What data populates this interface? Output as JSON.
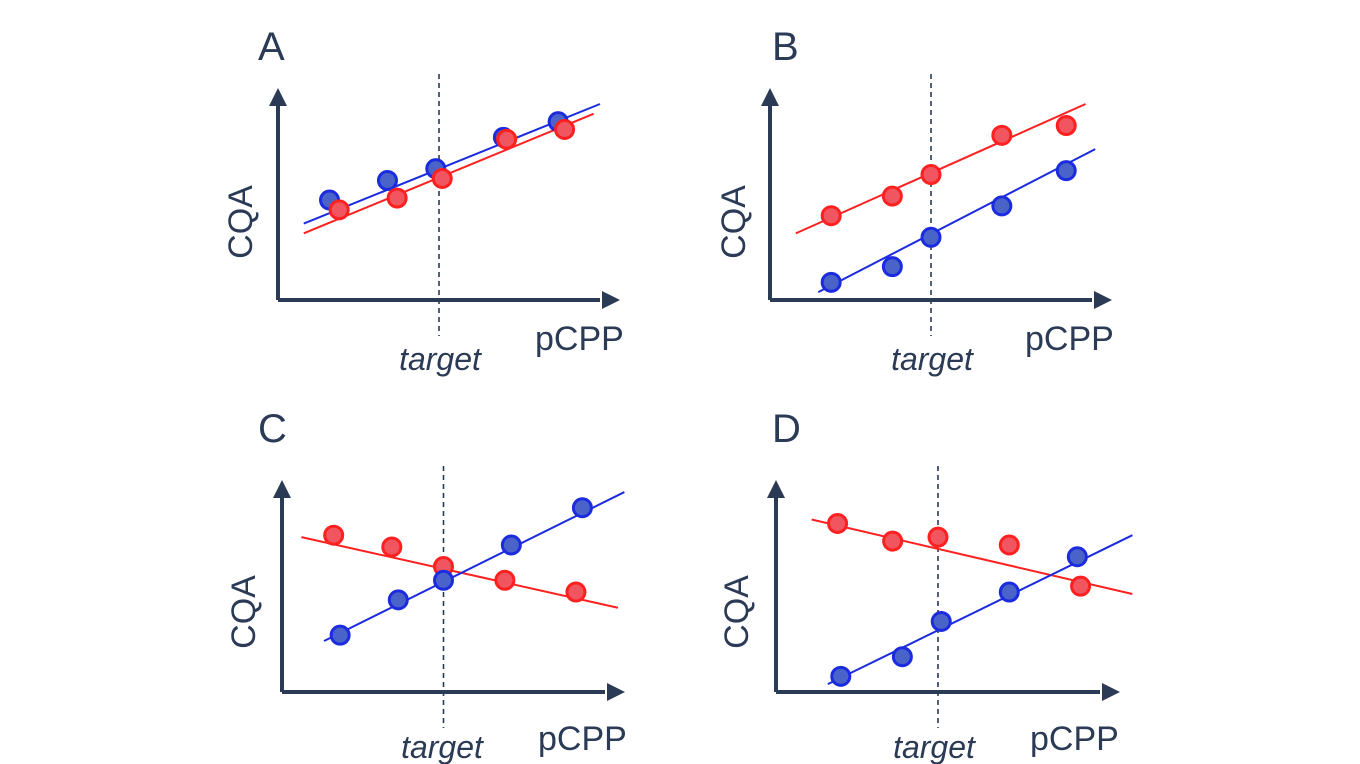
{
  "chart_data": [
    {
      "type": "scatter",
      "panel": "A",
      "title": "A",
      "xlabel": "pCPP",
      "ylabel": "CQA",
      "target_label": "target",
      "xlim": [
        0,
        10
      ],
      "ylim": [
        0,
        10
      ],
      "target_x": 5,
      "series": [
        {
          "name": "blue",
          "color": "#1a2be0",
          "fill": "#4a63c8",
          "points": [
            [
              1.6,
              5.1
            ],
            [
              3.4,
              6.1
            ],
            [
              4.9,
              6.7
            ],
            [
              7.0,
              8.3
            ],
            [
              8.7,
              9.1
            ]
          ],
          "fit": [
            [
              0.8,
              3.9
            ],
            [
              10,
              10
            ]
          ]
        },
        {
          "name": "red",
          "color": "#ff2020",
          "fill": "#f05560",
          "points": [
            [
              1.9,
              4.6
            ],
            [
              3.7,
              5.2
            ],
            [
              5.1,
              6.2
            ],
            [
              7.1,
              8.2
            ],
            [
              8.9,
              8.7
            ]
          ],
          "fit": [
            [
              0.8,
              3.4
            ],
            [
              9.8,
              9.5
            ]
          ]
        }
      ]
    },
    {
      "type": "scatter",
      "panel": "B",
      "title": "B",
      "xlabel": "pCPP",
      "ylabel": "CQA",
      "target_label": "target",
      "xlim": [
        0,
        10
      ],
      "ylim": [
        0,
        10
      ],
      "target_x": 5,
      "series": [
        {
          "name": "red",
          "color": "#ff2020",
          "fill": "#f05560",
          "points": [
            [
              1.9,
              4.3
            ],
            [
              3.8,
              5.3
            ],
            [
              5.0,
              6.4
            ],
            [
              7.2,
              8.4
            ],
            [
              9.2,
              8.9
            ]
          ],
          "fit": [
            [
              0.8,
              3.4
            ],
            [
              9.8,
              10
            ]
          ]
        },
        {
          "name": "blue",
          "color": "#1a2be0",
          "fill": "#4a63c8",
          "points": [
            [
              1.9,
              0.9
            ],
            [
              3.8,
              1.7
            ],
            [
              5.0,
              3.2
            ],
            [
              7.2,
              4.8
            ],
            [
              9.2,
              6.6
            ]
          ],
          "fit": [
            [
              1.5,
              0.4
            ],
            [
              10.1,
              7.7
            ]
          ]
        }
      ]
    },
    {
      "type": "scatter",
      "panel": "C",
      "title": "C",
      "xlabel": "pCPP",
      "ylabel": "CQA",
      "target_label": "target",
      "xlim": [
        0,
        10
      ],
      "ylim": [
        0,
        10
      ],
      "target_x": 5,
      "series": [
        {
          "name": "red",
          "color": "#ff2020",
          "fill": "#f05560",
          "points": [
            [
              1.6,
              8.0
            ],
            [
              3.4,
              7.4
            ],
            [
              5.0,
              6.4
            ],
            [
              6.9,
              5.7
            ],
            [
              9.1,
              5.1
            ]
          ],
          "fit": [
            [
              0.6,
              7.9
            ],
            [
              10.4,
              4.3
            ]
          ]
        },
        {
          "name": "blue",
          "color": "#1a2be0",
          "fill": "#4a63c8",
          "points": [
            [
              1.8,
              2.9
            ],
            [
              3.6,
              4.7
            ],
            [
              5.0,
              5.7
            ],
            [
              7.1,
              7.5
            ],
            [
              9.3,
              9.4
            ]
          ],
          "fit": [
            [
              1.3,
              2.6
            ],
            [
              10.6,
              10.2
            ]
          ]
        }
      ]
    },
    {
      "type": "scatter",
      "panel": "D",
      "title": "D",
      "xlabel": "pCPP",
      "ylabel": "CQA",
      "target_label": "target",
      "xlim": [
        0,
        10
      ],
      "ylim": [
        0,
        10
      ],
      "target_x": 5,
      "series": [
        {
          "name": "red",
          "color": "#ff2020",
          "fill": "#f05560",
          "points": [
            [
              1.9,
              8.6
            ],
            [
              3.6,
              7.7
            ],
            [
              5.0,
              7.9
            ],
            [
              7.2,
              7.5
            ],
            [
              9.4,
              5.4
            ]
          ],
          "fit": [
            [
              1.1,
              8.8
            ],
            [
              11.0,
              5.0
            ]
          ]
        },
        {
          "name": "blue",
          "color": "#1a2be0",
          "fill": "#4a63c8",
          "points": [
            [
              2.0,
              0.8
            ],
            [
              3.9,
              1.8
            ],
            [
              5.1,
              3.6
            ],
            [
              7.2,
              5.1
            ],
            [
              9.3,
              6.9
            ]
          ],
          "fit": [
            [
              1.6,
              0.4
            ],
            [
              11.0,
              8.0
            ]
          ]
        }
      ]
    }
  ]
}
